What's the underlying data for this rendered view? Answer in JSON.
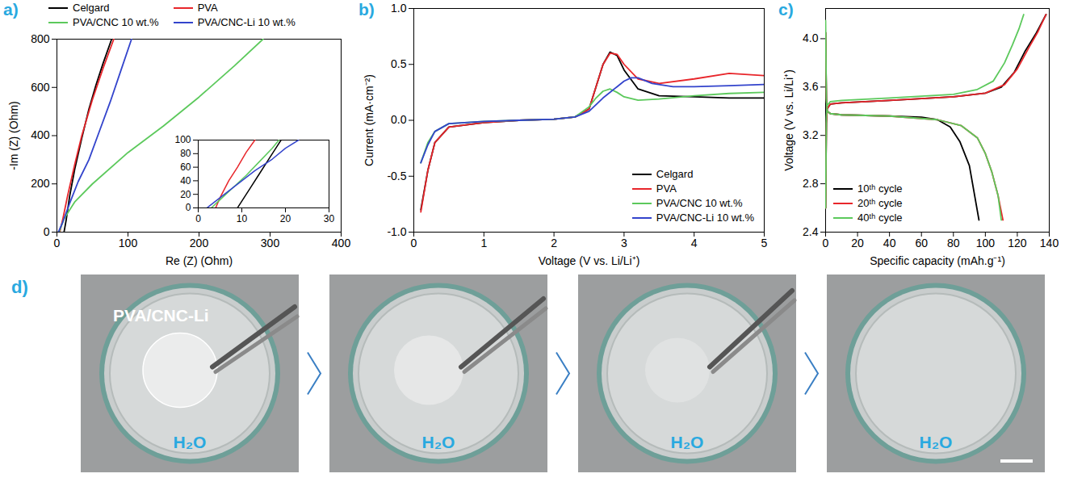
{
  "chart_data": [
    {
      "type": "line",
      "panel": "a)",
      "x_label": "Re (Z) (Ohm)",
      "y_label": "-Im (Z) (Ohm)",
      "xlim": [
        0,
        400
      ],
      "ylim": [
        0,
        800
      ],
      "xticks": [
        0,
        100,
        200,
        300,
        400
      ],
      "yticks": [
        0,
        200,
        400,
        600,
        800
      ],
      "legend": "top",
      "series": [
        {
          "name": "Celgard",
          "color": "#000000",
          "x": [
            10,
            13,
            18,
            25,
            35,
            45,
            55,
            65,
            77
          ],
          "values": [
            0,
            50,
            150,
            260,
            390,
            510,
            610,
            700,
            800
          ]
        },
        {
          "name": "PVA",
          "color": "#e8262b",
          "x": [
            4,
            8,
            15,
            25,
            35,
            50,
            65,
            80
          ],
          "values": [
            0,
            50,
            150,
            280,
            400,
            550,
            680,
            800
          ]
        },
        {
          "name": "PVA/CNC 10 wt.%",
          "color": "#5cc95c",
          "x": [
            3,
            10,
            25,
            50,
            100,
            150,
            200,
            250,
            290
          ],
          "values": [
            0,
            55,
            125,
            200,
            330,
            440,
            560,
            690,
            800
          ]
        },
        {
          "name": "PVA/CNC-Li 10 wt.%",
          "color": "#3344cc",
          "x": [
            2,
            8,
            18,
            30,
            45,
            60,
            75,
            90,
            105
          ],
          "values": [
            0,
            40,
            120,
            210,
            300,
            420,
            540,
            670,
            800
          ]
        }
      ],
      "inset": {
        "xlim": [
          0,
          30
        ],
        "ylim": [
          0,
          100
        ],
        "xticks": [
          0,
          10,
          20,
          30
        ],
        "yticks": [
          0,
          20,
          40,
          60,
          80,
          100
        ],
        "series": [
          {
            "name": "Celgard",
            "color": "#000000",
            "x": [
              9,
              10,
              12,
              14,
              16,
              18,
              19
            ],
            "values": [
              0,
              10,
              30,
              50,
              70,
              90,
              100
            ]
          },
          {
            "name": "PVA",
            "color": "#e8262b",
            "x": [
              4,
              5,
              7,
              9,
              11,
              13
            ],
            "values": [
              0,
              15,
              40,
              60,
              82,
              100
            ]
          },
          {
            "name": "PVA/CNC 10 wt.%",
            "color": "#5cc95c",
            "x": [
              3,
              5,
              8,
              11,
              14,
              17,
              18.5
            ],
            "values": [
              0,
              12,
              30,
              48,
              68,
              88,
              100
            ]
          },
          {
            "name": "PVA/CNC-Li 10 wt.%",
            "color": "#3344cc",
            "x": [
              2,
              5,
              9,
              13,
              17,
              20,
              23
            ],
            "values": [
              0,
              15,
              35,
              55,
              72,
              88,
              100
            ]
          }
        ]
      }
    },
    {
      "type": "line",
      "panel": "b)",
      "x_label": "Voltage (V vs. Li/Li⁺)",
      "y_label": "Current (mA·cm⁻²)",
      "xlim": [
        0,
        5
      ],
      "ylim": [
        -1,
        1
      ],
      "xticks": [
        0,
        1,
        2,
        3,
        4,
        5
      ],
      "yticks": [
        {
          "value": -1,
          "label": "-1.0"
        },
        -0.5,
        {
          "value": 0,
          "label": "0.0"
        },
        0.5,
        {
          "value": 1,
          "label": "1.0"
        }
      ],
      "legend": "lower right",
      "series": [
        {
          "name": "Celgard",
          "color": "#000000",
          "x": [
            0.1,
            0.2,
            0.3,
            0.5,
            1,
            1.5,
            2,
            2.3,
            2.5,
            2.6,
            2.7,
            2.8,
            2.9,
            3.0,
            3.2,
            3.5,
            4,
            4.5,
            5
          ],
          "values": [
            -0.8,
            -0.45,
            -0.2,
            -0.06,
            -0.02,
            0,
            0.01,
            0.03,
            0.1,
            0.3,
            0.5,
            0.61,
            0.58,
            0.45,
            0.28,
            0.22,
            0.21,
            0.2,
            0.2
          ]
        },
        {
          "name": "PVA",
          "color": "#e8262b",
          "x": [
            0.1,
            0.2,
            0.3,
            0.5,
            1,
            1.5,
            2,
            2.3,
            2.5,
            2.6,
            2.7,
            2.8,
            2.9,
            3.0,
            3.2,
            3.5,
            4,
            4.5,
            5
          ],
          "values": [
            -0.82,
            -0.45,
            -0.2,
            -0.06,
            -0.02,
            0,
            0.01,
            0.03,
            0.1,
            0.3,
            0.5,
            0.6,
            0.59,
            0.5,
            0.37,
            0.33,
            0.37,
            0.42,
            0.4
          ]
        },
        {
          "name": "PVA/CNC 10 wt.%",
          "color": "#5cc95c",
          "x": [
            0.1,
            0.2,
            0.3,
            0.5,
            1,
            1.5,
            2,
            2.3,
            2.5,
            2.6,
            2.7,
            2.8,
            2.9,
            3.0,
            3.2,
            3.5,
            4,
            4.5,
            5
          ],
          "values": [
            -0.38,
            -0.2,
            -0.1,
            -0.03,
            -0.01,
            0,
            0.01,
            0.03,
            0.12,
            0.2,
            0.26,
            0.28,
            0.25,
            0.21,
            0.18,
            0.19,
            0.22,
            0.24,
            0.25
          ]
        },
        {
          "name": "PVA/CNC-Li 10 wt.%",
          "color": "#3344cc",
          "x": [
            0.1,
            0.2,
            0.3,
            0.5,
            1,
            1.5,
            2,
            2.3,
            2.5,
            2.7,
            2.9,
            3.0,
            3.1,
            3.2,
            3.4,
            3.7,
            4,
            4.5,
            5
          ],
          "values": [
            -0.38,
            -0.22,
            -0.1,
            -0.03,
            -0.01,
            0,
            0.01,
            0.03,
            0.08,
            0.2,
            0.3,
            0.35,
            0.38,
            0.38,
            0.33,
            0.3,
            0.3,
            0.31,
            0.32
          ]
        }
      ]
    },
    {
      "type": "line",
      "panel": "c)",
      "x_label": "Specific capacity (mAh.g⁻¹)",
      "y_label": "Voltage (V vs. Li/Li⁺)",
      "xlim": [
        0,
        140
      ],
      "ylim": [
        2.4,
        4.25
      ],
      "xticks": [
        0,
        20,
        40,
        60,
        80,
        100,
        120,
        140
      ],
      "yticks": [
        2.4,
        2.8,
        3.2,
        3.6,
        {
          "value": 4.0,
          "label": "4.0"
        }
      ],
      "legend": "lower left",
      "series": [
        {
          "name": "10ᵗʰ cycle",
          "color": "#000000",
          "x": [
            0,
            0.5,
            1,
            3,
            10,
            40,
            80,
            100,
            110,
            118,
            125,
            132,
            138,
            138,
            0,
            0.5,
            1,
            3,
            10,
            40,
            60,
            70,
            78,
            84,
            90,
            96
          ],
          "values": [
            2.6,
            3.3,
            3.42,
            3.46,
            3.47,
            3.49,
            3.52,
            3.55,
            3.6,
            3.72,
            3.9,
            4.05,
            4.2,
            null,
            4.05,
            3.5,
            3.4,
            3.38,
            3.37,
            3.36,
            3.35,
            3.33,
            3.27,
            3.15,
            2.95,
            2.5
          ]
        },
        {
          "name": "20ᵗʰ cycle",
          "color": "#e8262b",
          "x": [
            0,
            0.5,
            1,
            3,
            10,
            40,
            80,
            100,
            112,
            120,
            127,
            133,
            138,
            138,
            0,
            0.5,
            1,
            3,
            10,
            40,
            70,
            85,
            95,
            100,
            104,
            108,
            111
          ],
          "values": [
            2.6,
            3.3,
            3.42,
            3.46,
            3.47,
            3.49,
            3.52,
            3.55,
            3.62,
            3.75,
            3.92,
            4.06,
            4.2,
            null,
            4.05,
            3.5,
            3.4,
            3.38,
            3.37,
            3.36,
            3.33,
            3.28,
            3.18,
            3.05,
            2.9,
            2.7,
            2.5
          ]
        },
        {
          "name": "40ᵗʰ cycle",
          "color": "#5cc95c",
          "x": [
            0,
            0.5,
            1,
            3,
            10,
            40,
            80,
            95,
            105,
            112,
            117,
            121,
            124,
            124,
            0,
            0.5,
            1,
            3,
            10,
            40,
            70,
            85,
            95,
            100,
            104,
            108,
            110
          ],
          "values": [
            2.6,
            3.35,
            3.45,
            3.48,
            3.49,
            3.51,
            3.54,
            3.58,
            3.65,
            3.8,
            3.95,
            4.08,
            4.2,
            null,
            4.15,
            3.5,
            3.4,
            3.38,
            3.37,
            3.36,
            3.33,
            3.28,
            3.18,
            3.05,
            2.9,
            2.7,
            2.5
          ]
        }
      ]
    }
  ],
  "panel_d": {
    "panel": "d)",
    "film": "PVA/CNC-Li",
    "frames": [
      {
        "medium": "H₂O"
      },
      {
        "medium": "H₂O"
      },
      {
        "medium": "H₂O"
      },
      {
        "medium": "H₂O"
      }
    ]
  }
}
